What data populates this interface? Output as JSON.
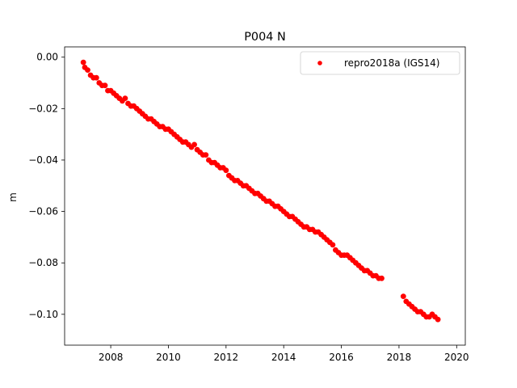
{
  "chart_data": {
    "type": "scatter",
    "title": "P004 N",
    "xlabel": "",
    "ylabel": "m",
    "xlim": [
      2006.4,
      2020.3
    ],
    "ylim": [
      -0.112,
      0.004
    ],
    "xticks": [
      2008,
      2010,
      2012,
      2014,
      2016,
      2018,
      2020
    ],
    "yticks": [
      0.0,
      -0.02,
      -0.04,
      -0.06,
      -0.08,
      -0.1
    ],
    "ytick_labels": [
      "0.00",
      "−0.02",
      "−0.04",
      "−0.06",
      "−0.08",
      "−0.10"
    ],
    "legend_placement": "top-right",
    "grid": false,
    "series": [
      {
        "name": "repro2018a (IGS14)",
        "color": "#ff0000",
        "marker": "circle",
        "x": [
          2007.05,
          2007.1,
          2007.2,
          2007.3,
          2007.4,
          2007.5,
          2007.6,
          2007.7,
          2007.8,
          2007.9,
          2008.0,
          2008.1,
          2008.2,
          2008.3,
          2008.4,
          2008.5,
          2008.6,
          2008.7,
          2008.8,
          2008.9,
          2009.0,
          2009.1,
          2009.2,
          2009.3,
          2009.4,
          2009.5,
          2009.6,
          2009.7,
          2009.8,
          2009.9,
          2010.0,
          2010.1,
          2010.2,
          2010.3,
          2010.4,
          2010.5,
          2010.6,
          2010.7,
          2010.8,
          2010.9,
          2011.0,
          2011.1,
          2011.2,
          2011.3,
          2011.4,
          2011.5,
          2011.6,
          2011.7,
          2011.8,
          2011.9,
          2012.0,
          2012.1,
          2012.2,
          2012.3,
          2012.4,
          2012.5,
          2012.6,
          2012.7,
          2012.8,
          2012.9,
          2013.0,
          2013.1,
          2013.2,
          2013.3,
          2013.4,
          2013.5,
          2013.6,
          2013.7,
          2013.8,
          2013.9,
          2014.0,
          2014.1,
          2014.2,
          2014.3,
          2014.4,
          2014.5,
          2014.6,
          2014.7,
          2014.8,
          2014.9,
          2015.0,
          2015.1,
          2015.2,
          2015.3,
          2015.4,
          2015.5,
          2015.6,
          2015.7,
          2015.8,
          2015.9,
          2016.0,
          2016.1,
          2016.2,
          2016.3,
          2016.4,
          2016.5,
          2016.6,
          2016.7,
          2016.8,
          2016.9,
          2017.0,
          2017.1,
          2017.2,
          2017.3,
          2017.4,
          2018.15,
          2018.25,
          2018.35,
          2018.45,
          2018.55,
          2018.65,
          2018.75,
          2018.85,
          2018.95,
          2019.05,
          2019.15,
          2019.25,
          2019.35
        ],
        "y": [
          -0.002,
          -0.004,
          -0.005,
          -0.007,
          -0.008,
          -0.008,
          -0.01,
          -0.011,
          -0.011,
          -0.013,
          -0.013,
          -0.014,
          -0.015,
          -0.016,
          -0.017,
          -0.016,
          -0.018,
          -0.019,
          -0.019,
          -0.02,
          -0.021,
          -0.022,
          -0.023,
          -0.024,
          -0.024,
          -0.025,
          -0.026,
          -0.027,
          -0.027,
          -0.028,
          -0.028,
          -0.029,
          -0.03,
          -0.031,
          -0.032,
          -0.033,
          -0.033,
          -0.034,
          -0.035,
          -0.034,
          -0.036,
          -0.037,
          -0.038,
          -0.038,
          -0.04,
          -0.041,
          -0.041,
          -0.042,
          -0.043,
          -0.043,
          -0.044,
          -0.046,
          -0.047,
          -0.048,
          -0.048,
          -0.049,
          -0.05,
          -0.05,
          -0.051,
          -0.052,
          -0.053,
          -0.053,
          -0.054,
          -0.055,
          -0.056,
          -0.056,
          -0.057,
          -0.058,
          -0.058,
          -0.059,
          -0.06,
          -0.061,
          -0.062,
          -0.062,
          -0.063,
          -0.064,
          -0.065,
          -0.066,
          -0.066,
          -0.067,
          -0.067,
          -0.068,
          -0.068,
          -0.069,
          -0.07,
          -0.071,
          -0.072,
          -0.073,
          -0.075,
          -0.076,
          -0.077,
          -0.077,
          -0.077,
          -0.078,
          -0.079,
          -0.08,
          -0.081,
          -0.082,
          -0.083,
          -0.083,
          -0.084,
          -0.085,
          -0.085,
          -0.086,
          -0.086,
          -0.093,
          -0.095,
          -0.096,
          -0.097,
          -0.098,
          -0.099,
          -0.099,
          -0.1,
          -0.101,
          -0.101,
          -0.1,
          -0.101,
          -0.102
        ]
      }
    ]
  }
}
